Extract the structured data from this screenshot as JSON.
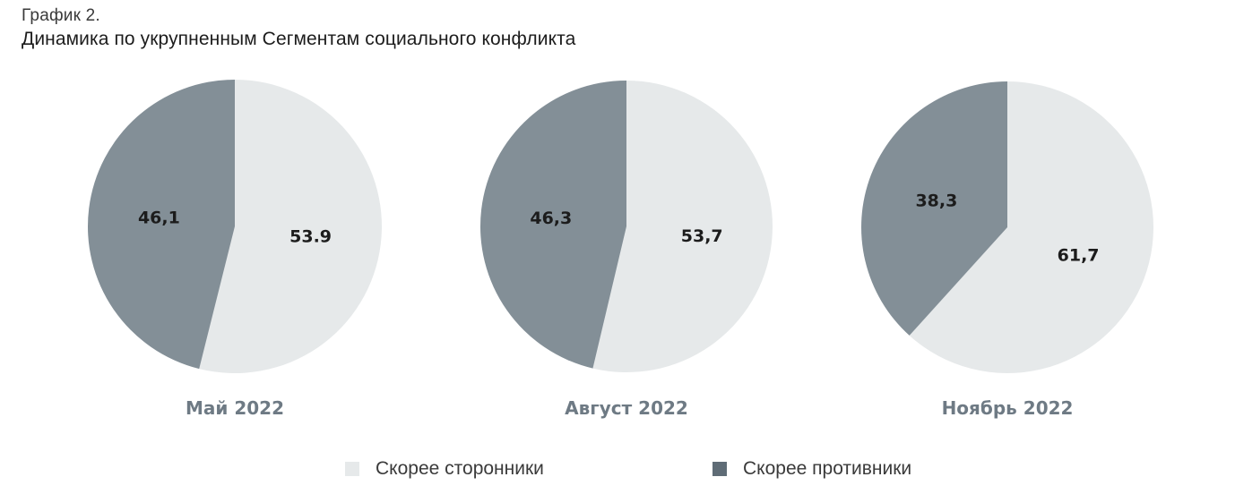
{
  "header": {
    "label": "График 2.",
    "title": "Динамика по укрупненным Сегментам социального конфликта"
  },
  "colors": {
    "supporters": "#e6e9ea",
    "opponents": "#838f97",
    "opponents_legend": "#5f6c76",
    "period_text": "#6e7a84"
  },
  "legend": {
    "supporters": "Скорее сторонники",
    "opponents": "Скорее противники"
  },
  "chart_data": [
    {
      "type": "pie",
      "title": "Май 2022",
      "slices": [
        {
          "name": "Скорее сторонники",
          "value": 53.9,
          "label": "53.9"
        },
        {
          "name": "Скорее противники",
          "value": 46.1,
          "label": "46,1"
        }
      ]
    },
    {
      "type": "pie",
      "title": "Август 2022",
      "slices": [
        {
          "name": "Скорее сторонники",
          "value": 53.7,
          "label": "53,7"
        },
        {
          "name": "Скорее противники",
          "value": 46.3,
          "label": "46,3"
        }
      ]
    },
    {
      "type": "pie",
      "title": "Ноябрь 2022",
      "slices": [
        {
          "name": "Скорее сторонники",
          "value": 61.7,
          "label": "61,7"
        },
        {
          "name": "Скорее противники",
          "value": 38.3,
          "label": "38,3"
        }
      ]
    }
  ]
}
